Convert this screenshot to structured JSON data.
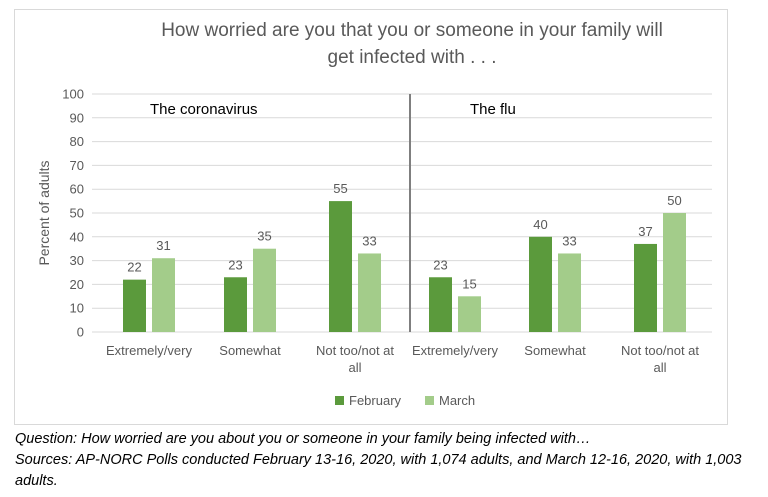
{
  "title": [
    "How worried are you that you or someone in your family will",
    "get infected with . . ."
  ],
  "caption": {
    "question": "Question: How worried are you about you or someone in your family being infected with…",
    "sources": "Sources: AP-NORC Polls conducted February 13-16, 2020, with 1,074 adults, and March 12-16, 2020, with 1,003 adults."
  },
  "colors": {
    "february": "#5b9a3c",
    "march": "#a3cc8a",
    "grid": "#d9d9d9",
    "divider": "#7f7f7f",
    "text": "#595959"
  },
  "chart_data": {
    "type": "bar",
    "ylabel": "Percent of adults",
    "ylim": [
      0,
      100
    ],
    "yticks": [
      0,
      10,
      20,
      30,
      40,
      50,
      60,
      70,
      80,
      90,
      100
    ],
    "grid": true,
    "legend_position": "bottom",
    "panels": [
      {
        "label": "The coronavirus",
        "categories": [
          "Extremely/very",
          "Somewhat",
          "Not too/not at all"
        ],
        "series": [
          {
            "name": "February",
            "values": [
              22,
              23,
              55
            ]
          },
          {
            "name": "March",
            "values": [
              31,
              35,
              33
            ]
          }
        ]
      },
      {
        "label": "The flu",
        "categories": [
          "Extremely/very",
          "Somewhat",
          "Not too/not at all"
        ],
        "series": [
          {
            "name": "February",
            "values": [
              23,
              40,
              37
            ]
          },
          {
            "name": "March",
            "values": [
              15,
              33,
              50
            ]
          }
        ]
      }
    ]
  }
}
